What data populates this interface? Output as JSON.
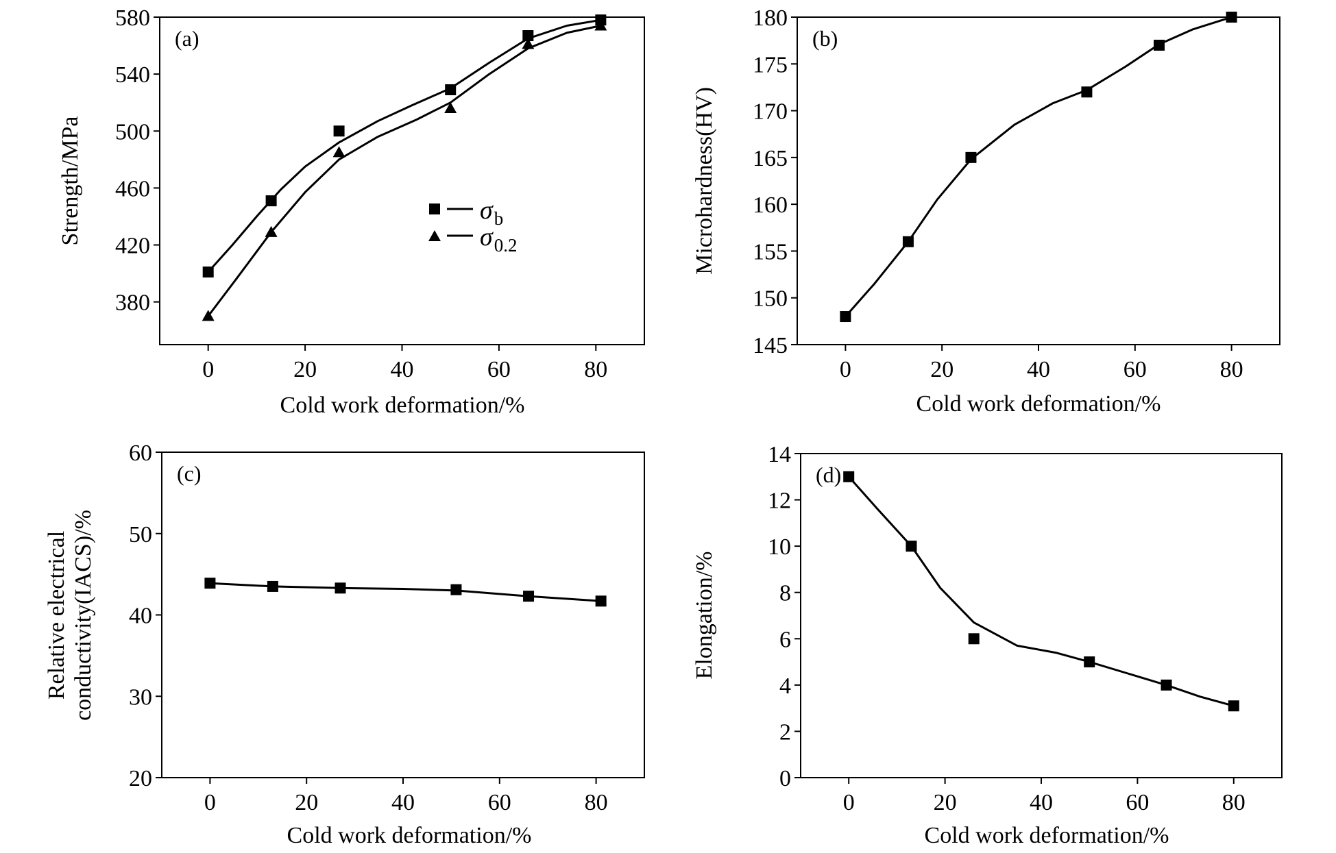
{
  "chart_data": [
    {
      "panel_label": "(a)",
      "type": "line",
      "xlabel": "Cold work deformation/%",
      "ylabel": "Strength/MPa",
      "xlim": [
        -10,
        90
      ],
      "ylim": [
        350,
        580
      ],
      "xticks": [
        0,
        20,
        40,
        60,
        80
      ],
      "yticks": [
        380,
        420,
        460,
        500,
        540,
        580
      ],
      "grid": false,
      "legend_position": "center",
      "series": [
        {
          "name": "σ",
          "name_subscript": "b",
          "marker": "square",
          "x": [
            0,
            13,
            27,
            50,
            66,
            81
          ],
          "y": [
            401,
            451,
            500,
            529,
            567,
            578
          ],
          "curve": [
            [
              0,
              401
            ],
            [
              5,
              420
            ],
            [
              10,
              440
            ],
            [
              15,
              459
            ],
            [
              20,
              475
            ],
            [
              27,
              492
            ],
            [
              35,
              507
            ],
            [
              42,
              518
            ],
            [
              50,
              530
            ],
            [
              58,
              548
            ],
            [
              66,
              565
            ],
            [
              74,
              574
            ],
            [
              81,
              578
            ]
          ]
        },
        {
          "name": "σ",
          "name_subscript": "0.2",
          "marker": "triangle",
          "x": [
            0,
            13,
            27,
            50,
            66,
            81
          ],
          "y": [
            370,
            429,
            485,
            516,
            561,
            574
          ],
          "curve": [
            [
              0,
              370
            ],
            [
              6,
              397
            ],
            [
              13,
              429
            ],
            [
              20,
              457
            ],
            [
              27,
              480
            ],
            [
              35,
              496
            ],
            [
              43,
              508
            ],
            [
              50,
              520
            ],
            [
              58,
              540
            ],
            [
              66,
              558
            ],
            [
              74,
              569
            ],
            [
              81,
              574
            ]
          ]
        }
      ]
    },
    {
      "panel_label": "(b)",
      "type": "line",
      "xlabel": "Cold work deformation/%",
      "ylabel": "Microhardness(HV)",
      "xlim": [
        -10,
        90
      ],
      "ylim": [
        145,
        180
      ],
      "xticks": [
        0,
        20,
        40,
        60,
        80
      ],
      "yticks": [
        145,
        150,
        155,
        160,
        165,
        170,
        175,
        180
      ],
      "grid": false,
      "series": [
        {
          "marker": "square",
          "x": [
            0,
            13,
            26,
            50,
            65,
            80
          ],
          "y": [
            148,
            156,
            165,
            172,
            177,
            180
          ],
          "curve": [
            [
              0,
              148
            ],
            [
              6,
              151.5
            ],
            [
              13,
              156
            ],
            [
              19,
              160.5
            ],
            [
              26,
              164.8
            ],
            [
              35,
              168.5
            ],
            [
              43,
              170.8
            ],
            [
              50,
              172.2
            ],
            [
              58,
              174.7
            ],
            [
              65,
              177.1
            ],
            [
              72,
              178.7
            ],
            [
              80,
              180
            ]
          ]
        }
      ]
    },
    {
      "panel_label": "(c)",
      "type": "line",
      "xlabel": "Cold work deformation/%",
      "ylabel_line1": "Relative electrical",
      "ylabel_line2": "conductivity(IACS)/%",
      "xlim": [
        -10,
        90
      ],
      "ylim": [
        20,
        60
      ],
      "xticks": [
        0,
        20,
        40,
        60,
        80
      ],
      "yticks": [
        20,
        30,
        40,
        50,
        60
      ],
      "grid": false,
      "series": [
        {
          "marker": "square",
          "x": [
            0,
            13,
            27,
            51,
            66,
            81
          ],
          "y": [
            43.9,
            43.5,
            43.3,
            43.1,
            42.3,
            41.7
          ],
          "curve": [
            [
              0,
              43.9
            ],
            [
              13,
              43.5
            ],
            [
              27,
              43.3
            ],
            [
              40,
              43.2
            ],
            [
              51,
              43.0
            ],
            [
              66,
              42.3
            ],
            [
              81,
              41.7
            ]
          ]
        }
      ]
    },
    {
      "panel_label": "(d)",
      "type": "line",
      "xlabel": "Cold work deformation/%",
      "ylabel": "Elongation/%",
      "xlim": [
        -10,
        90
      ],
      "ylim": [
        0,
        14
      ],
      "xticks": [
        0,
        20,
        40,
        60,
        80
      ],
      "yticks": [
        0,
        2,
        4,
        6,
        8,
        10,
        12,
        14
      ],
      "grid": false,
      "series": [
        {
          "marker": "square",
          "x": [
            0,
            13,
            26,
            50,
            66,
            80
          ],
          "y": [
            13,
            10,
            6,
            5,
            4,
            3.1
          ],
          "curve": [
            [
              0,
              13
            ],
            [
              6,
              11.6
            ],
            [
              13,
              10
            ],
            [
              19,
              8.2
            ],
            [
              26,
              6.7
            ],
            [
              35,
              5.7
            ],
            [
              43,
              5.4
            ],
            [
              50,
              5.0
            ],
            [
              58,
              4.5
            ],
            [
              66,
              4.0
            ],
            [
              73,
              3.5
            ],
            [
              80,
              3.1
            ]
          ]
        }
      ]
    }
  ]
}
